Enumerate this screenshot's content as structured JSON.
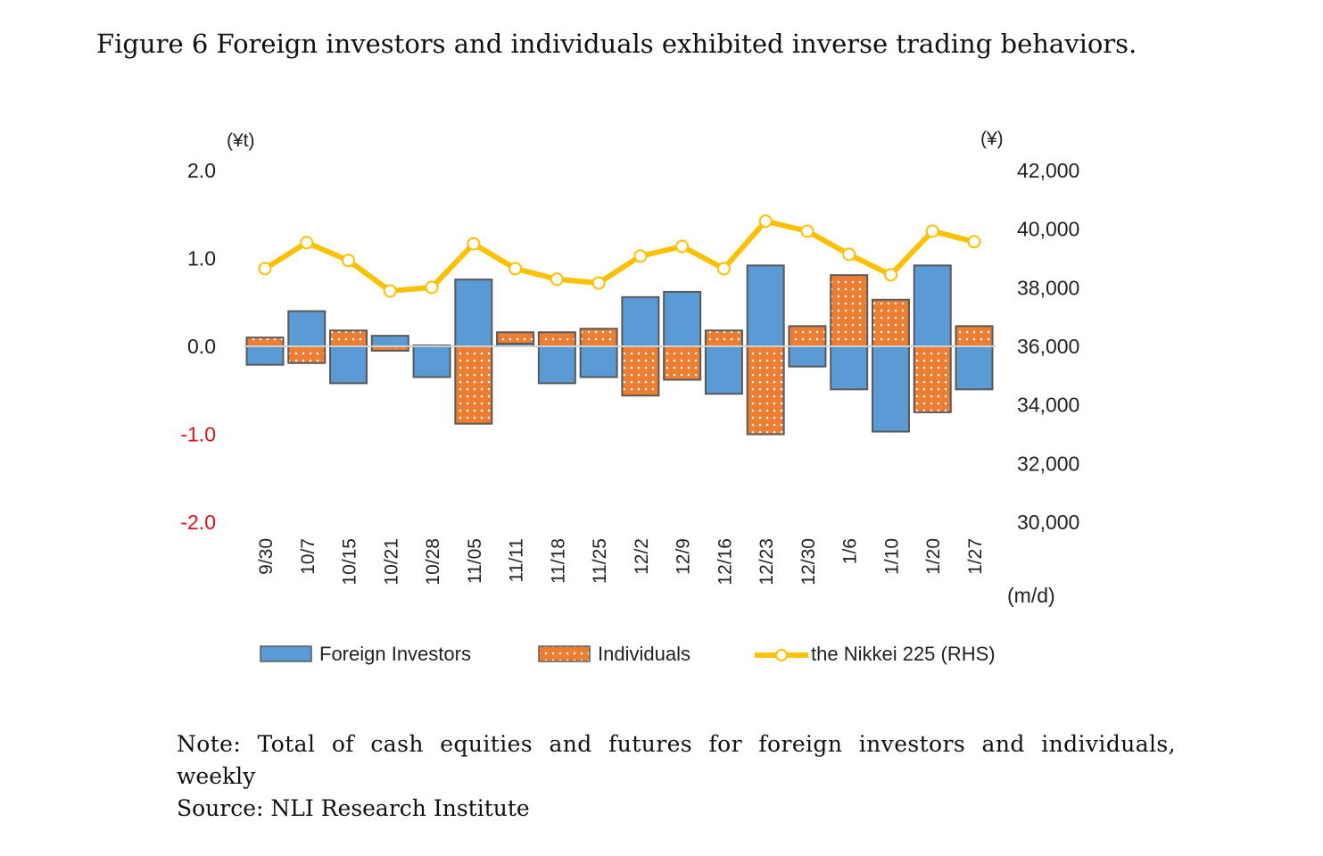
{
  "title": "Figure 6 Foreign investors and individuals exhibited inverse trading behaviors.",
  "notes": {
    "note_line1": "Note: Total of cash equities and futures for foreign investors and individuals,",
    "note_line2": "weekly",
    "source": "Source: NLI Research Institute"
  },
  "colors": {
    "foreign": "#5B9BD5",
    "individuals": "#ED7D31",
    "nikkei": "#FFC000",
    "bar_border": "#595959",
    "zero_line": "#D0D0D0",
    "negative_tick": "#E3101C"
  },
  "chart_data": {
    "type": "bar",
    "subtype": "stacked bar with line on secondary axis",
    "title": "",
    "xlabel": "(m/d)",
    "ylabel": "(¥t)",
    "y2label": "(¥)",
    "ylim": [
      -2.0,
      2.0
    ],
    "y2lim": [
      30000,
      42000
    ],
    "yticks": [
      "2.0",
      "1.0",
      "0.0",
      "-1.0",
      "-2.0"
    ],
    "ytick_values": [
      2.0,
      1.0,
      0.0,
      -1.0,
      -2.0
    ],
    "y2ticks": [
      "42,000",
      "40,000",
      "38,000",
      "36,000",
      "34,000",
      "32,000",
      "30,000"
    ],
    "y2tick_values": [
      42000,
      40000,
      38000,
      36000,
      34000,
      32000,
      30000
    ],
    "grid": false,
    "legend_position": "bottom",
    "categories": [
      "9/30",
      "10/7",
      "10/15",
      "10/21",
      "10/28",
      "11/05",
      "11/11",
      "11/18",
      "11/25",
      "12/2",
      "12/9",
      "12/16",
      "12/23",
      "12/30",
      "1/6",
      "1/10",
      "1/20",
      "1/27"
    ],
    "series": [
      {
        "name": "Foreign Investors",
        "type": "bar",
        "axis": "left",
        "values": [
          -0.21,
          0.4,
          -0.42,
          0.12,
          -0.35,
          0.76,
          0.03,
          -0.42,
          -0.35,
          0.56,
          0.62,
          -0.54,
          0.92,
          -0.23,
          -0.49,
          -0.97,
          0.92,
          -0.49
        ]
      },
      {
        "name": "Individuals",
        "type": "bar",
        "axis": "left",
        "values": [
          0.1,
          -0.19,
          0.18,
          -0.05,
          0.01,
          -0.88,
          0.13,
          0.16,
          0.2,
          -0.56,
          -0.38,
          0.18,
          -1.0,
          0.23,
          0.81,
          0.53,
          -0.75,
          0.23
        ]
      },
      {
        "name": "the Nikkei 225 (RHS)",
        "type": "line",
        "axis": "right",
        "values": [
          38650,
          39540,
          38930,
          37890,
          38010,
          39500,
          38650,
          38290,
          38160,
          39080,
          39410,
          38650,
          40270,
          39930,
          39140,
          38440,
          39930,
          39570
        ]
      }
    ]
  }
}
